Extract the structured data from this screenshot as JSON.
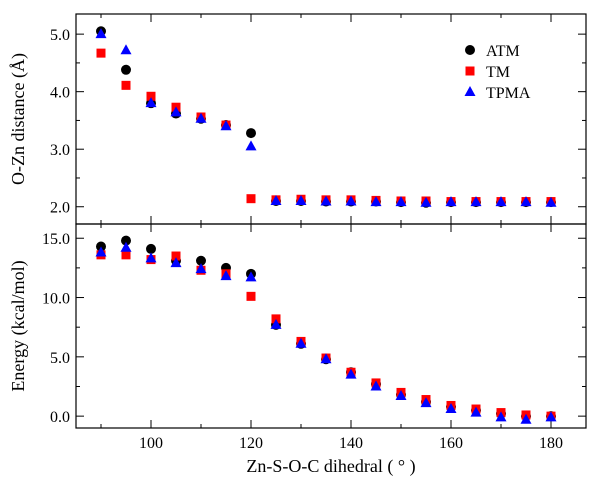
{
  "chart_data": [
    {
      "type": "scatter",
      "title": "",
      "xlabel": "",
      "ylabel": "O-Zn distance (Å)",
      "xlim": [
        85,
        187
      ],
      "ylim": [
        1.7,
        5.35
      ],
      "yticks": [
        "2.0",
        "3.0",
        "4.0",
        "5.0"
      ],
      "xticks": [
        "100",
        "120",
        "140",
        "160",
        "180"
      ],
      "legend": {
        "position": "top-right",
        "entries": [
          "ATM",
          "TM",
          "TPMA"
        ]
      },
      "grid": false,
      "x": [
        90,
        95,
        100,
        105,
        110,
        115,
        120,
        125,
        130,
        135,
        140,
        145,
        150,
        155,
        160,
        165,
        170,
        175,
        180
      ],
      "series": [
        {
          "name": "ATM",
          "marker": "circle",
          "color": "#000000",
          "values": [
            5.05,
            4.38,
            3.8,
            3.62,
            3.53,
            3.42,
            3.28,
            2.1,
            2.1,
            2.09,
            2.09,
            2.09,
            2.08,
            2.07,
            2.08,
            2.08,
            2.08,
            2.08,
            2.08
          ]
        },
        {
          "name": "TM",
          "marker": "square",
          "color": "#ff0000",
          "values": [
            4.67,
            4.11,
            3.92,
            3.73,
            3.56,
            3.42,
            2.14,
            2.12,
            2.13,
            2.12,
            2.12,
            2.11,
            2.1,
            2.1,
            2.09,
            2.09,
            2.09,
            2.09,
            2.09
          ]
        },
        {
          "name": "TPMA",
          "marker": "triangle",
          "color": "#0000ff",
          "values": [
            5.0,
            4.72,
            3.8,
            3.64,
            3.53,
            3.4,
            3.05,
            2.1,
            2.1,
            2.09,
            2.09,
            2.08,
            2.08,
            2.07,
            2.08,
            2.08,
            2.08,
            2.08,
            2.07
          ]
        }
      ]
    },
    {
      "type": "scatter",
      "title": "",
      "xlabel": "Zn-S-O-C dihedral ( ° )",
      "ylabel": "Energy (kcal/mol)",
      "xlim": [
        85,
        187
      ],
      "ylim": [
        -1.0,
        16.2
      ],
      "yticks": [
        "0.0",
        "5.0",
        "10.0",
        "15.0"
      ],
      "xticks": [
        "100",
        "120",
        "140",
        "160",
        "180"
      ],
      "grid": false,
      "x": [
        90,
        95,
        100,
        105,
        110,
        115,
        120,
        125,
        130,
        135,
        140,
        145,
        150,
        155,
        160,
        165,
        170,
        175,
        180
      ],
      "series": [
        {
          "name": "ATM",
          "marker": "circle",
          "color": "#000000",
          "values": [
            14.3,
            14.8,
            14.1,
            13.1,
            13.1,
            12.5,
            12.0,
            7.7,
            6.1,
            4.8,
            3.7,
            2.7,
            1.8,
            1.2,
            0.8,
            0.5,
            0.2,
            0.0,
            0.0
          ]
        },
        {
          "name": "TM",
          "marker": "square",
          "color": "#ff0000",
          "values": [
            13.6,
            13.6,
            13.2,
            13.5,
            12.3,
            12.0,
            10.1,
            8.2,
            6.3,
            4.9,
            3.7,
            2.8,
            2.0,
            1.4,
            0.9,
            0.6,
            0.3,
            0.1,
            0.0
          ]
        },
        {
          "name": "TPMA",
          "marker": "triangle",
          "color": "#0000ff",
          "values": [
            13.8,
            14.2,
            13.3,
            12.9,
            12.4,
            11.8,
            11.7,
            7.7,
            6.1,
            4.8,
            3.5,
            2.5,
            1.7,
            1.1,
            0.6,
            0.3,
            -0.1,
            -0.3,
            -0.1
          ]
        }
      ]
    }
  ]
}
